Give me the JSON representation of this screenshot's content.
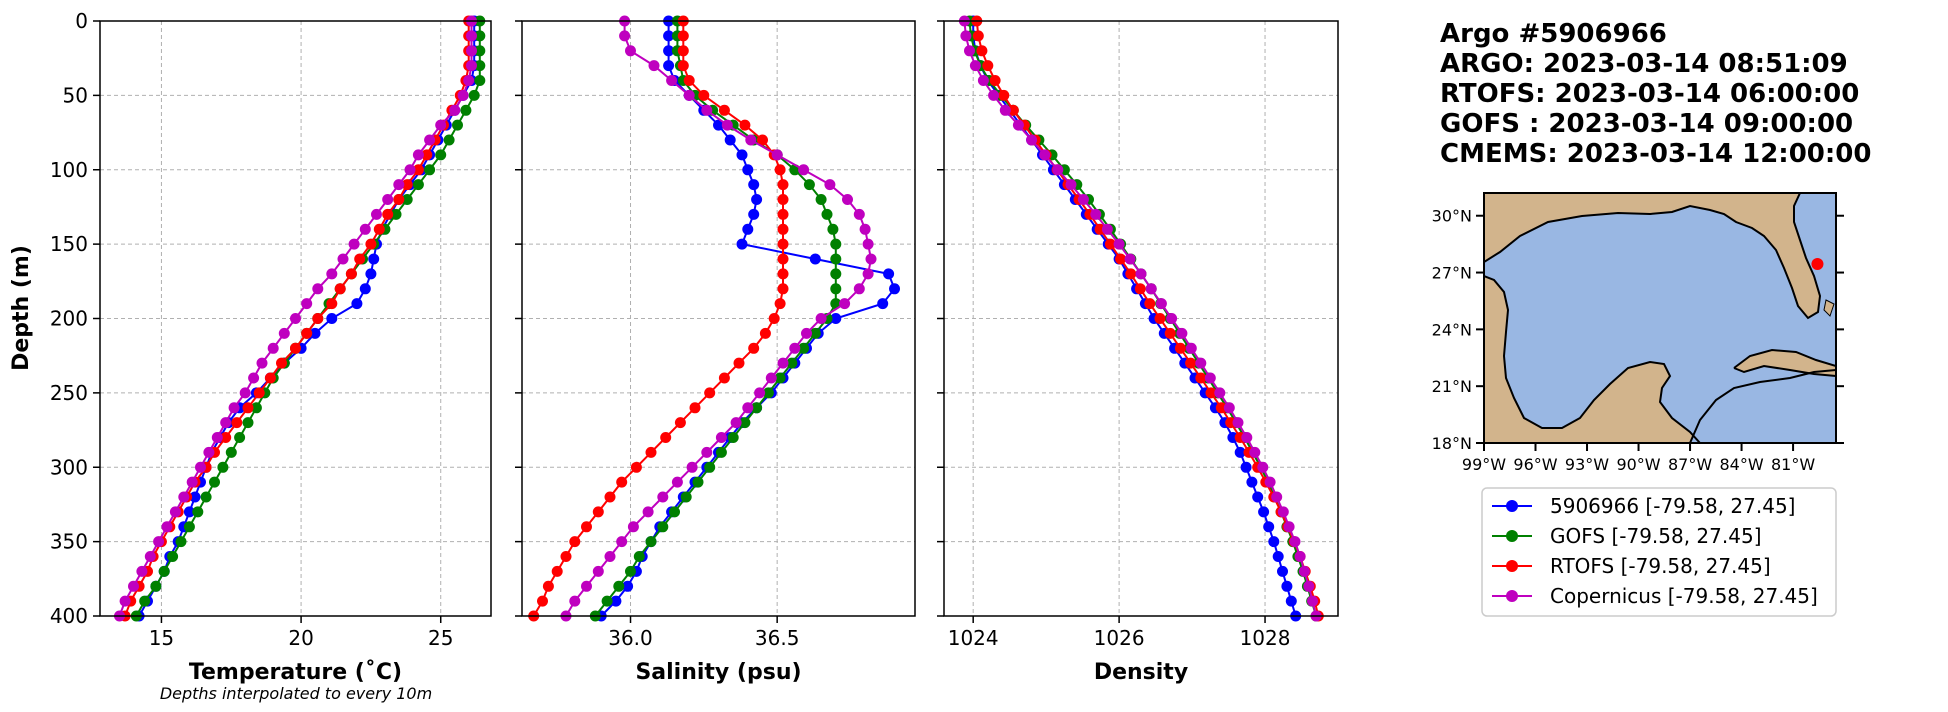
{
  "title_lines": [
    "Argo #5906966",
    "ARGO:  2023-03-14 08:51:09",
    "RTOFS: 2023-03-14 06:00:00",
    "GOFS : 2023-03-14 09:00:00",
    "CMEMS: 2023-03-14 12:00:00"
  ],
  "note": "Depths interpolated to every 10m",
  "colors": {
    "argo": "#0000ff",
    "gofs": "#008000",
    "rtofs": "#ff0000",
    "copernicus": "#bf00bf",
    "land": "#d2b48c",
    "ocean": "#99b7e3"
  },
  "chart_data": [
    {
      "type": "line",
      "xlabel": "Temperature (˚C)",
      "ylabel": "Depth (m)",
      "xlim": [
        12.8,
        26.8
      ],
      "ylim": [
        400,
        0
      ],
      "xticks": [
        "15",
        "20",
        "25"
      ],
      "xtick_values": [
        15,
        20,
        25
      ],
      "yticks": [
        "0",
        "50",
        "100",
        "150",
        "200",
        "250",
        "300",
        "350",
        "400"
      ],
      "ytick_values": [
        0,
        50,
        100,
        150,
        200,
        250,
        300,
        350,
        400
      ],
      "grid": true,
      "depths": [
        0,
        10,
        20,
        30,
        40,
        50,
        60,
        70,
        80,
        90,
        100,
        110,
        120,
        130,
        140,
        150,
        160,
        170,
        180,
        190,
        200,
        210,
        220,
        230,
        240,
        250,
        260,
        270,
        280,
        290,
        300,
        310,
        320,
        330,
        340,
        350,
        360,
        370,
        380,
        390,
        400
      ],
      "series": [
        {
          "name": "5906966 [-79.58, 27.45]",
          "key": "argo",
          "values": [
            26.2,
            26.2,
            26.2,
            26.2,
            26.1,
            25.8,
            25.5,
            25.2,
            24.9,
            24.6,
            24.3,
            23.9,
            23.5,
            23.2,
            22.9,
            22.7,
            22.6,
            22.5,
            22.3,
            22.0,
            21.1,
            20.5,
            20.0,
            19.4,
            18.9,
            18.4,
            17.8,
            17.4,
            17.1,
            16.8,
            16.6,
            16.4,
            16.2,
            16.0,
            15.8,
            15.6,
            15.3,
            15.1,
            14.8,
            14.5,
            14.2
          ]
        },
        {
          "name": "GOFS [-79.58, 27.45]",
          "key": "gofs",
          "values": [
            26.4,
            26.4,
            26.4,
            26.4,
            26.4,
            26.2,
            25.9,
            25.6,
            25.3,
            25.0,
            24.6,
            24.2,
            23.8,
            23.4,
            23.0,
            22.6,
            22.2,
            21.8,
            21.4,
            21.0,
            20.6,
            20.2,
            19.8,
            19.4,
            19.0,
            18.7,
            18.4,
            18.1,
            17.8,
            17.5,
            17.2,
            16.9,
            16.6,
            16.3,
            16.0,
            15.7,
            15.4,
            15.1,
            14.8,
            14.4,
            14.1
          ]
        },
        {
          "name": "RTOFS [-79.58, 27.45]",
          "key": "rtofs",
          "values": [
            26.0,
            26.0,
            26.0,
            26.0,
            25.9,
            25.7,
            25.4,
            25.1,
            24.8,
            24.5,
            24.2,
            23.8,
            23.5,
            23.1,
            22.8,
            22.5,
            22.1,
            21.8,
            21.4,
            21.1,
            20.6,
            20.2,
            19.8,
            19.3,
            18.9,
            18.5,
            18.1,
            17.7,
            17.3,
            16.9,
            16.6,
            16.2,
            15.9,
            15.6,
            15.3,
            15.0,
            14.7,
            14.5,
            14.2,
            13.9,
            13.7
          ]
        },
        {
          "name": "Copernicus [-79.58, 27.45]",
          "key": "copernicus",
          "values": [
            26.1,
            26.1,
            26.1,
            26.1,
            26.0,
            25.8,
            25.5,
            25.0,
            24.6,
            24.2,
            23.9,
            23.5,
            23.1,
            22.7,
            22.3,
            21.9,
            21.5,
            21.1,
            20.6,
            20.2,
            19.8,
            19.4,
            19.0,
            18.6,
            18.3,
            18.0,
            17.6,
            17.3,
            17.0,
            16.7,
            16.4,
            16.1,
            15.8,
            15.5,
            15.2,
            14.9,
            14.6,
            14.3,
            14.0,
            13.7,
            13.5
          ]
        }
      ]
    },
    {
      "type": "line",
      "xlabel": "Salinity (psu)",
      "xlim": [
        35.63,
        36.97
      ],
      "ylim": [
        400,
        0
      ],
      "xticks": [
        "36.0",
        "36.5"
      ],
      "xtick_values": [
        36.0,
        36.5
      ],
      "yticks": [
        "0",
        "50",
        "100",
        "150",
        "200",
        "250",
        "300",
        "350",
        "400"
      ],
      "ytick_values": [
        0,
        50,
        100,
        150,
        200,
        250,
        300,
        350,
        400
      ],
      "grid": true,
      "depths": [
        0,
        10,
        20,
        30,
        40,
        50,
        60,
        70,
        80,
        90,
        100,
        110,
        120,
        130,
        140,
        150,
        160,
        170,
        180,
        190,
        200,
        210,
        220,
        230,
        240,
        250,
        260,
        270,
        280,
        290,
        300,
        310,
        320,
        330,
        340,
        350,
        360,
        370,
        380,
        390,
        400
      ],
      "series": [
        {
          "name": "5906966 [-79.58, 27.45]",
          "key": "argo",
          "values": [
            36.13,
            36.13,
            36.13,
            36.13,
            36.15,
            36.2,
            36.25,
            36.3,
            36.34,
            36.38,
            36.4,
            36.42,
            36.43,
            36.42,
            36.4,
            36.38,
            36.63,
            36.88,
            36.9,
            36.86,
            36.7,
            36.64,
            36.6,
            36.56,
            36.52,
            36.48,
            36.43,
            36.38,
            36.34,
            36.3,
            36.26,
            36.22,
            36.18,
            36.14,
            36.1,
            36.07,
            36.04,
            36.02,
            35.99,
            35.95,
            35.9
          ]
        },
        {
          "name": "GOFS [-79.58, 27.45]",
          "key": "gofs",
          "values": [
            36.16,
            36.16,
            36.16,
            36.17,
            36.18,
            36.22,
            36.28,
            36.35,
            36.42,
            36.5,
            36.56,
            36.61,
            36.65,
            36.67,
            36.69,
            36.7,
            36.7,
            36.7,
            36.7,
            36.7,
            36.67,
            36.63,
            36.59,
            36.55,
            36.51,
            36.47,
            36.43,
            36.39,
            36.35,
            36.31,
            36.27,
            36.23,
            36.19,
            36.15,
            36.11,
            36.07,
            36.03,
            36.0,
            35.96,
            35.92,
            35.88
          ]
        },
        {
          "name": "RTOFS [-79.58, 27.45]",
          "key": "rtofs",
          "values": [
            36.18,
            36.18,
            36.18,
            36.18,
            36.2,
            36.25,
            36.32,
            36.39,
            36.45,
            36.49,
            36.51,
            36.52,
            36.52,
            36.52,
            36.52,
            36.52,
            36.52,
            36.52,
            36.52,
            36.51,
            36.49,
            36.46,
            36.42,
            36.37,
            36.32,
            36.27,
            36.22,
            36.17,
            36.12,
            36.07,
            36.02,
            35.97,
            35.93,
            35.89,
            35.85,
            35.81,
            35.78,
            35.75,
            35.72,
            35.7,
            35.67
          ]
        },
        {
          "name": "Copernicus [-79.58, 27.45]",
          "key": "copernicus",
          "values": [
            35.98,
            35.98,
            36.0,
            36.08,
            36.14,
            36.2,
            36.26,
            36.33,
            36.41,
            36.5,
            36.59,
            36.68,
            36.74,
            36.78,
            36.8,
            36.81,
            36.82,
            36.81,
            36.78,
            36.73,
            36.65,
            36.6,
            36.56,
            36.52,
            36.48,
            36.44,
            36.4,
            36.36,
            36.31,
            36.26,
            36.21,
            36.16,
            36.11,
            36.06,
            36.01,
            35.97,
            35.93,
            35.89,
            35.85,
            35.81,
            35.78
          ]
        }
      ]
    },
    {
      "type": "line",
      "xlabel": "Density",
      "xlim": [
        1023.6,
        1029.0
      ],
      "ylim": [
        400,
        0
      ],
      "xticks": [
        "1024",
        "1026",
        "1028"
      ],
      "xtick_values": [
        1024,
        1026,
        1028
      ],
      "yticks": [
        "0",
        "50",
        "100",
        "150",
        "200",
        "250",
        "300",
        "350",
        "400"
      ],
      "ytick_values": [
        0,
        50,
        100,
        150,
        200,
        250,
        300,
        350,
        400
      ],
      "grid": true,
      "depths": [
        0,
        10,
        20,
        30,
        40,
        50,
        60,
        70,
        80,
        90,
        100,
        110,
        120,
        130,
        140,
        150,
        160,
        170,
        180,
        190,
        200,
        210,
        220,
        230,
        240,
        250,
        260,
        270,
        280,
        290,
        300,
        310,
        320,
        330,
        340,
        350,
        360,
        370,
        380,
        390,
        400
      ],
      "series": [
        {
          "name": "5906966 [-79.58, 27.45]",
          "key": "argo",
          "values": [
            1024.0,
            1024.0,
            1024.03,
            1024.1,
            1024.2,
            1024.35,
            1024.5,
            1024.65,
            1024.8,
            1024.95,
            1025.1,
            1025.25,
            1025.4,
            1025.55,
            1025.7,
            1025.85,
            1026.0,
            1026.12,
            1026.24,
            1026.36,
            1026.48,
            1026.62,
            1026.76,
            1026.9,
            1027.04,
            1027.18,
            1027.32,
            1027.45,
            1027.56,
            1027.66,
            1027.74,
            1027.82,
            1027.9,
            1027.98,
            1028.05,
            1028.12,
            1028.18,
            1028.24,
            1028.3,
            1028.36,
            1028.42
          ]
        },
        {
          "name": "GOFS [-79.58, 27.45]",
          "key": "gofs",
          "values": [
            1023.95,
            1023.97,
            1024.02,
            1024.1,
            1024.22,
            1024.38,
            1024.55,
            1024.72,
            1024.9,
            1025.08,
            1025.25,
            1025.42,
            1025.58,
            1025.73,
            1025.88,
            1026.02,
            1026.16,
            1026.3,
            1026.44,
            1026.57,
            1026.7,
            1026.83,
            1026.96,
            1027.09,
            1027.22,
            1027.35,
            1027.48,
            1027.6,
            1027.72,
            1027.83,
            1027.94,
            1028.04,
            1028.13,
            1028.22,
            1028.3,
            1028.38,
            1028.45,
            1028.52,
            1028.58,
            1028.64,
            1028.7
          ]
        },
        {
          "name": "RTOFS [-79.58, 27.45]",
          "key": "rtofs",
          "values": [
            1024.05,
            1024.07,
            1024.12,
            1024.2,
            1024.3,
            1024.42,
            1024.55,
            1024.7,
            1024.85,
            1025.0,
            1025.15,
            1025.3,
            1025.45,
            1025.6,
            1025.74,
            1025.88,
            1026.02,
            1026.16,
            1026.29,
            1026.42,
            1026.56,
            1026.7,
            1026.84,
            1026.98,
            1027.12,
            1027.26,
            1027.4,
            1027.53,
            1027.66,
            1027.78,
            1027.9,
            1028.01,
            1028.12,
            1028.22,
            1028.31,
            1028.4,
            1028.48,
            1028.55,
            1028.62,
            1028.68,
            1028.73
          ]
        },
        {
          "name": "Copernicus [-79.58, 27.45]",
          "key": "copernicus",
          "values": [
            1023.88,
            1023.9,
            1023.95,
            1024.03,
            1024.14,
            1024.28,
            1024.44,
            1024.62,
            1024.8,
            1024.98,
            1025.16,
            1025.34,
            1025.51,
            1025.68,
            1025.84,
            1026.0,
            1026.15,
            1026.3,
            1026.44,
            1026.58,
            1026.72,
            1026.86,
            1026.99,
            1027.12,
            1027.25,
            1027.38,
            1027.51,
            1027.63,
            1027.75,
            1027.86,
            1027.97,
            1028.07,
            1028.16,
            1028.25,
            1028.33,
            1028.41,
            1028.48,
            1028.54,
            1028.6,
            1028.65,
            1028.7
          ]
        }
      ]
    }
  ],
  "map": {
    "lon_ticks": [
      "99°W",
      "96°W",
      "93°W",
      "90°W",
      "87°W",
      "84°W",
      "81°W"
    ],
    "lon_values": [
      -99,
      -96,
      -93,
      -90,
      -87,
      -84,
      -81
    ],
    "lat_ticks": [
      "30°N",
      "27°N",
      "24°N",
      "21°N",
      "18°N"
    ],
    "lat_values": [
      30,
      27,
      24,
      21,
      18
    ],
    "lon_range": [
      -99,
      -78.5
    ],
    "lat_range": [
      18,
      31.2
    ],
    "float_position": [
      -79.58,
      27.45
    ]
  },
  "legend": [
    {
      "label": "5906966 [-79.58, 27.45]",
      "key": "argo"
    },
    {
      "label": "GOFS [-79.58, 27.45]",
      "key": "gofs"
    },
    {
      "label": "RTOFS [-79.58, 27.45]",
      "key": "rtofs"
    },
    {
      "label": "Copernicus [-79.58, 27.45]",
      "key": "copernicus"
    }
  ]
}
